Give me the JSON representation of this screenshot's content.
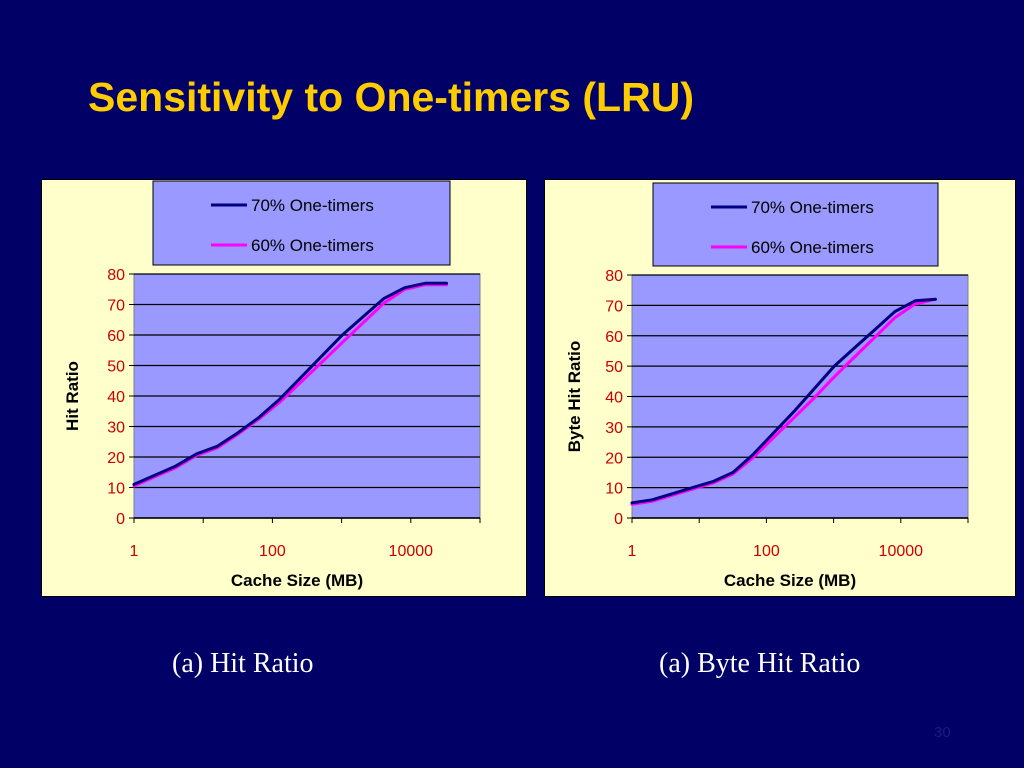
{
  "slide": {
    "title": "Sensitivity to One-timers (LRU)",
    "page_number": "30",
    "background": "#000066",
    "title_color": "#FFCC00"
  },
  "captions": [
    "(a) Hit Ratio",
    "(a) Byte Hit Ratio"
  ],
  "colors": {
    "panel": "#FFFFCC",
    "plot_area": "#9999FF",
    "legend_bg": "#9999FF",
    "series_70": "#000080",
    "series_60": "#FF00FF",
    "tick_text": "#CC0000"
  },
  "chart_data": [
    {
      "type": "line",
      "xlabel": "Cache Size (MB)",
      "ylabel": "Hit Ratio",
      "x_scale": "log",
      "xlim": [
        1,
        100000
      ],
      "x_ticks": [
        "1",
        "100",
        "10000"
      ],
      "ylim": [
        0,
        80
      ],
      "y_ticks": [
        "0",
        "10",
        "20",
        "30",
        "40",
        "50",
        "60",
        "70",
        "80"
      ],
      "grid": "horizontal",
      "legend_position": "top",
      "series": [
        {
          "name": "70% One-timers",
          "x": [
            1,
            2,
            4,
            8,
            16,
            32,
            64,
            128,
            256,
            512,
            1024,
            2048,
            4096,
            8192,
            16384,
            32768
          ],
          "y": [
            11,
            14,
            17,
            21,
            23.5,
            28,
            33,
            39,
            46,
            53,
            60,
            66,
            72,
            75.5,
            77,
            77
          ]
        },
        {
          "name": "60% One-timers",
          "x": [
            1,
            2,
            4,
            8,
            16,
            32,
            64,
            128,
            256,
            512,
            1024,
            2048,
            4096,
            8192,
            16384,
            32768
          ],
          "y": [
            10.5,
            13.5,
            16.5,
            20.5,
            23,
            27.5,
            32.5,
            38,
            44.5,
            51,
            57.5,
            64,
            70.5,
            75,
            76.5,
            76.5
          ]
        }
      ]
    },
    {
      "type": "line",
      "xlabel": "Cache Size (MB)",
      "ylabel": "Byte Hit Ratio",
      "x_scale": "log",
      "xlim": [
        1,
        100000
      ],
      "x_ticks": [
        "1",
        "100",
        "10000"
      ],
      "ylim": [
        0,
        80
      ],
      "y_ticks": [
        "0",
        "10",
        "20",
        "30",
        "40",
        "50",
        "60",
        "70",
        "80"
      ],
      "grid": "horizontal",
      "legend_position": "top",
      "series": [
        {
          "name": "70% One-timers",
          "x": [
            1,
            2,
            4,
            8,
            16,
            32,
            64,
            128,
            256,
            512,
            1024,
            2048,
            4096,
            8192,
            16384,
            32768
          ],
          "y": [
            5,
            6,
            8,
            10,
            12,
            15,
            21,
            28,
            35,
            42.5,
            50,
            56,
            62,
            68,
            71.5,
            72
          ]
        },
        {
          "name": "60% One-timers",
          "x": [
            1,
            2,
            4,
            8,
            16,
            32,
            64,
            128,
            256,
            512,
            1024,
            2048,
            4096,
            8192,
            16384,
            32768
          ],
          "y": [
            4.5,
            5.5,
            7.5,
            9.5,
            11.5,
            14.5,
            20,
            26.5,
            33,
            39.5,
            46.5,
            53,
            59.5,
            66,
            70.5,
            72
          ]
        }
      ]
    }
  ]
}
